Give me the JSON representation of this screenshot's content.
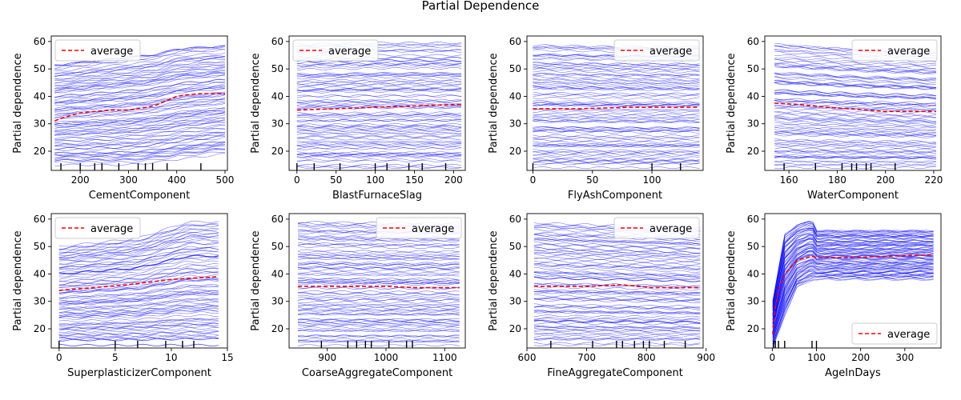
{
  "figure_title": "Partial Dependence",
  "colors": {
    "ice_lines": "#0000ff",
    "average_line": "#ff0000",
    "axes": "#000000"
  },
  "chart_data": [
    {
      "type": "line",
      "feature": "CementComponent",
      "xlabel": "CementComponent",
      "ylabel": "Partial dependence",
      "xlim": [
        140,
        505
      ],
      "ylim": [
        13,
        62
      ],
      "xticks": [
        200,
        300,
        400,
        500
      ],
      "yticks": [
        20,
        30,
        40,
        50,
        60
      ],
      "legend": {
        "label": "average",
        "placement": "upper-left"
      },
      "average": {
        "x": [
          147,
          160,
          180,
          200,
          230,
          260,
          300,
          340,
          360,
          380,
          400,
          420,
          450,
          480,
          500
        ],
        "y": [
          31,
          32,
          33,
          34,
          34.5,
          35,
          35,
          36,
          37,
          38.5,
          40,
          40.5,
          41,
          41,
          41
        ]
      },
      "ice_band": {
        "x": [
          147,
          200,
          300,
          360,
          400,
          500
        ],
        "low": [
          15,
          15,
          15,
          16,
          17,
          19
        ],
        "high": [
          52,
          53,
          55,
          56,
          58,
          59
        ]
      },
      "rug": [
        160,
        200,
        230,
        245,
        280,
        320,
        335,
        350,
        380,
        450
      ]
    },
    {
      "type": "line",
      "feature": "BlastFurnaceSlag",
      "xlabel": "BlastFurnaceSlag",
      "ylabel": "Partial dependence",
      "xlim": [
        -10,
        215
      ],
      "ylim": [
        13,
        62
      ],
      "xticks": [
        0,
        50,
        100,
        150,
        200
      ],
      "yticks": [
        20,
        30,
        40,
        50,
        60
      ],
      "legend": {
        "label": "average",
        "placement": "upper-left"
      },
      "average": {
        "x": [
          0,
          50,
          100,
          150,
          200,
          210
        ],
        "y": [
          35,
          35.5,
          36,
          36.5,
          37,
          37
        ]
      },
      "ice_band": {
        "x": [
          0,
          100,
          210
        ],
        "low": [
          14,
          14,
          14
        ],
        "high": [
          59,
          59.5,
          59.5
        ]
      },
      "rug": [
        0,
        22,
        55,
        100,
        115,
        143,
        160,
        190
      ]
    },
    {
      "type": "line",
      "feature": "FlyAshComponent",
      "xlabel": "FlyAshComponent",
      "ylabel": "Partial dependence",
      "xlim": [
        -5,
        143
      ],
      "ylim": [
        13,
        62
      ],
      "xticks": [
        0,
        50,
        100
      ],
      "yticks": [
        20,
        30,
        40,
        50,
        60
      ],
      "legend": {
        "label": "average",
        "placement": "upper-right"
      },
      "average": {
        "x": [
          0,
          40,
          80,
          100,
          140
        ],
        "y": [
          35.5,
          35.5,
          36,
          36,
          36
        ]
      },
      "ice_band": {
        "x": [
          0,
          70,
          140
        ],
        "low": [
          14,
          14,
          14
        ],
        "high": [
          59,
          58.5,
          58.5
        ]
      },
      "rug": [
        0,
        100,
        124
      ]
    },
    {
      "type": "line",
      "feature": "WaterComponent",
      "xlabel": "WaterComponent",
      "ylabel": "Partial dependence",
      "xlim": [
        150,
        223
      ],
      "ylim": [
        13,
        62
      ],
      "xticks": [
        160,
        180,
        200,
        220
      ],
      "yticks": [
        20,
        30,
        40,
        50,
        60
      ],
      "legend": {
        "label": "average",
        "placement": "upper-right"
      },
      "average": {
        "x": [
          154,
          165,
          175,
          185,
          192,
          200,
          210,
          221
        ],
        "y": [
          37.5,
          37,
          36,
          35.5,
          35,
          34.5,
          34.5,
          34.5
        ]
      },
      "ice_band": {
        "x": [
          154,
          190,
          221
        ],
        "low": [
          14,
          14,
          14
        ],
        "high": [
          59,
          57,
          56
        ]
      },
      "rug": [
        158,
        171,
        182,
        186,
        188,
        192,
        194,
        204
      ]
    },
    {
      "type": "line",
      "feature": "SuperplasticizerComponent",
      "xlabel": "SuperplasticizerComponent",
      "ylabel": "Partial dependence",
      "xlim": [
        -0.7,
        15
      ],
      "ylim": [
        13,
        62
      ],
      "xticks": [
        0,
        5,
        10,
        15
      ],
      "yticks": [
        20,
        30,
        40,
        50,
        60
      ],
      "legend": {
        "label": "average",
        "placement": "upper-left"
      },
      "average": {
        "x": [
          0,
          3,
          6,
          8,
          10,
          12,
          14.2
        ],
        "y": [
          34,
          35,
          36,
          37,
          38,
          38.5,
          39
        ]
      },
      "ice_band": {
        "x": [
          0,
          7,
          11.5,
          14.2
        ],
        "low": [
          14,
          14,
          14,
          14
        ],
        "high": [
          50,
          53,
          59,
          59
        ]
      },
      "rug": [
        0,
        5,
        7,
        9.5,
        11,
        12
      ]
    },
    {
      "type": "line",
      "feature": "CoarseAggregateComponent",
      "xlabel": "CoarseAggregateComponent",
      "ylabel": "Partial dependence",
      "xlim": [
        835,
        1135
      ],
      "ylim": [
        13,
        62
      ],
      "xticks": [
        900,
        1000,
        1100
      ],
      "yticks": [
        20,
        30,
        40,
        50,
        60
      ],
      "legend": {
        "label": "average",
        "placement": "upper-right"
      },
      "average": {
        "x": [
          850,
          900,
          950,
          1000,
          1050,
          1125
        ],
        "y": [
          35.5,
          35.5,
          35.5,
          35.5,
          35,
          35
        ]
      },
      "ice_band": {
        "x": [
          850,
          1000,
          1125
        ],
        "low": [
          14,
          14,
          14
        ],
        "high": [
          59,
          58.5,
          58.5
        ]
      },
      "rug": [
        890,
        935,
        950,
        965,
        975,
        1005,
        1035,
        1045
      ]
    },
    {
      "type": "line",
      "feature": "FineAggregateComponent",
      "xlabel": "FineAggregateComponent",
      "ylabel": "Partial dependence",
      "xlim": [
        600,
        895
      ],
      "ylim": [
        13,
        62
      ],
      "xticks": [
        600,
        700,
        800,
        900
      ],
      "yticks": [
        20,
        30,
        40,
        50,
        60
      ],
      "legend": {
        "label": "average",
        "placement": "upper-right"
      },
      "average": {
        "x": [
          612,
          700,
          760,
          790,
          810,
          850,
          890
        ],
        "y": [
          35.5,
          35.5,
          36,
          35.5,
          35,
          35,
          35
        ]
      },
      "ice_band": {
        "x": [
          612,
          750,
          890
        ],
        "low": [
          14,
          14,
          14
        ],
        "high": [
          59,
          58,
          57
        ]
      },
      "rug": [
        640,
        710,
        750,
        760,
        780,
        795,
        805,
        830,
        865
      ]
    },
    {
      "type": "line",
      "feature": "AgeInDays",
      "xlabel": "AgeInDays",
      "ylabel": "Partial dependence",
      "xlim": [
        -17,
        382
      ],
      "ylim": [
        13,
        62
      ],
      "xticks": [
        0,
        100,
        200,
        300
      ],
      "yticks": [
        20,
        30,
        40,
        50,
        60
      ],
      "legend": {
        "label": "average",
        "placement": "lower-right"
      },
      "average": {
        "x": [
          1,
          3,
          7,
          14,
          28,
          56,
          90,
          100,
          180,
          270,
          365
        ],
        "y": [
          18,
          22,
          28,
          34,
          40,
          45,
          46.5,
          46,
          46,
          46.5,
          47
        ]
      },
      "ice_band": {
        "x": [
          1,
          28,
          56,
          90,
          100,
          365
        ],
        "low": [
          13,
          25,
          35,
          38,
          38,
          38
        ],
        "high": [
          30,
          55,
          58,
          60,
          56,
          56
        ]
      },
      "rug": [
        3,
        7,
        14,
        28,
        90,
        100
      ]
    }
  ]
}
